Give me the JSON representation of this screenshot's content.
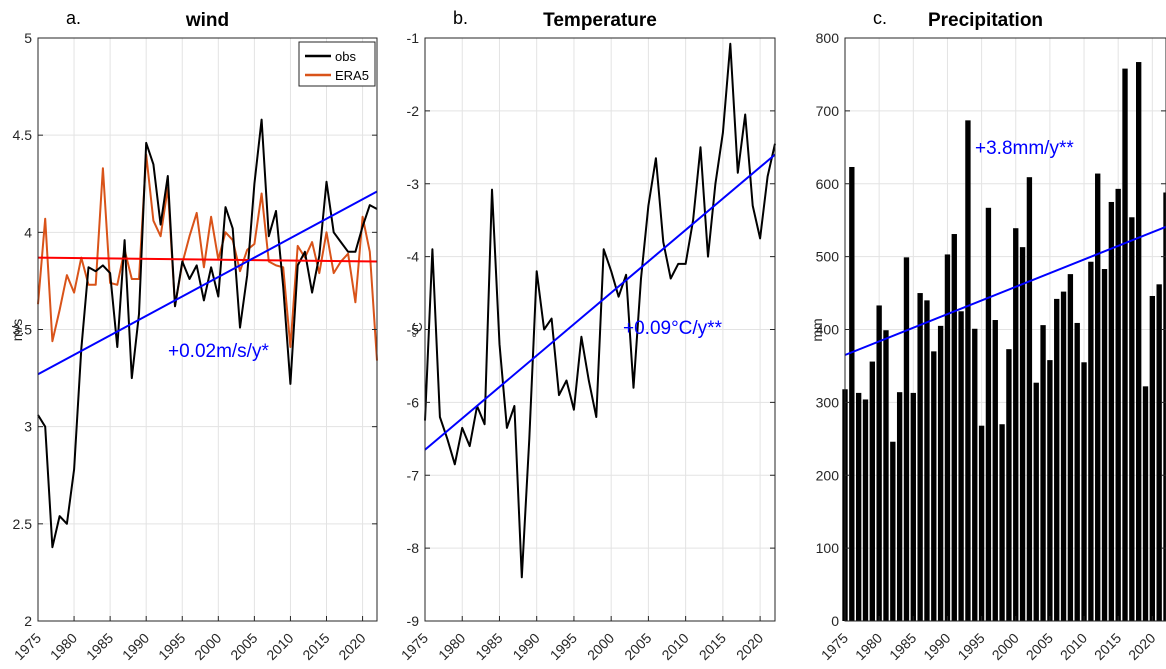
{
  "chart_data": [
    {
      "type": "line",
      "panel_label": "a.",
      "title": "wind",
      "ylabel": "m/s",
      "xlim": [
        1975,
        2022
      ],
      "ylim": [
        2,
        5
      ],
      "yticks": [
        2,
        2.5,
        3,
        3.5,
        4,
        4.5,
        5
      ],
      "xticks": [
        1975,
        1980,
        1985,
        1990,
        1995,
        2000,
        2005,
        2010,
        2015,
        2020
      ],
      "grid": true,
      "legend": {
        "position": "top-right",
        "entries": [
          "obs",
          "ERA5"
        ]
      },
      "x": [
        1975,
        1976,
        1977,
        1978,
        1979,
        1980,
        1981,
        1982,
        1983,
        1984,
        1985,
        1986,
        1987,
        1988,
        1989,
        1990,
        1991,
        1992,
        1993,
        1994,
        1995,
        1996,
        1997,
        1998,
        1999,
        2000,
        2001,
        2002,
        2003,
        2004,
        2005,
        2006,
        2007,
        2008,
        2009,
        2010,
        2011,
        2012,
        2013,
        2014,
        2015,
        2016,
        2017,
        2018,
        2019,
        2020,
        2021,
        2022
      ],
      "series": [
        {
          "name": "obs",
          "color": "#000000",
          "values": [
            3.06,
            3.0,
            2.38,
            2.54,
            2.5,
            2.78,
            3.4,
            3.82,
            3.8,
            3.83,
            3.79,
            3.41,
            3.96,
            3.25,
            3.58,
            4.46,
            4.35,
            4.04,
            4.29,
            3.62,
            3.85,
            3.76,
            3.83,
            3.65,
            3.82,
            3.67,
            4.13,
            4.02,
            3.51,
            3.78,
            4.25,
            4.58,
            3.98,
            4.11,
            3.72,
            3.22,
            3.83,
            3.9,
            3.69,
            3.88,
            4.26,
            4.0,
            3.95,
            3.9,
            3.9,
            4.03,
            4.14,
            4.12
          ]
        },
        {
          "name": "ERA5",
          "color": "#d95319",
          "values": [
            3.63,
            4.07,
            3.44,
            3.6,
            3.78,
            3.69,
            3.87,
            3.73,
            3.73,
            4.33,
            3.74,
            3.73,
            3.91,
            3.76,
            3.76,
            4.4,
            4.06,
            3.98,
            4.23,
            3.62,
            3.84,
            3.98,
            4.1,
            3.82,
            4.08,
            3.86,
            4.0,
            3.96,
            3.8,
            3.91,
            3.94,
            4.2,
            3.85,
            3.83,
            3.82,
            3.41,
            3.93,
            3.87,
            3.95,
            3.79,
            4.0,
            3.79,
            3.85,
            3.89,
            3.64,
            4.08,
            3.9,
            3.34
          ]
        }
      ],
      "trends": [
        {
          "color": "#ff0000",
          "x": [
            1975,
            2022
          ],
          "y": [
            3.87,
            3.85
          ]
        },
        {
          "color": "#0000ff",
          "x": [
            1975,
            2022
          ],
          "y": [
            3.27,
            4.21
          ]
        }
      ],
      "annotation": {
        "text": "+0.02m/s/y*",
        "color": "#0000ff"
      }
    },
    {
      "type": "line",
      "panel_label": "b.",
      "title": "Temperature",
      "ylabel": "°C",
      "xlim": [
        1975,
        2022
      ],
      "ylim": [
        -9,
        -1
      ],
      "yticks": [
        -9,
        -8,
        -7,
        -6,
        -5,
        -4,
        -3,
        -2,
        -1
      ],
      "xticks": [
        1975,
        1980,
        1985,
        1990,
        1995,
        2000,
        2005,
        2010,
        2015,
        2020
      ],
      "grid": true,
      "x": [
        1975,
        1976,
        1977,
        1978,
        1979,
        1980,
        1981,
        1982,
        1983,
        1984,
        1985,
        1986,
        1987,
        1988,
        1989,
        1990,
        1991,
        1992,
        1993,
        1994,
        1995,
        1996,
        1997,
        1998,
        1999,
        2000,
        2001,
        2002,
        2003,
        2004,
        2005,
        2006,
        2007,
        2008,
        2009,
        2010,
        2011,
        2012,
        2013,
        2014,
        2015,
        2016,
        2017,
        2018,
        2019,
        2020,
        2021,
        2022
      ],
      "series": [
        {
          "color": "#000000",
          "values": [
            -6.25,
            -3.9,
            -6.2,
            -6.5,
            -6.85,
            -6.35,
            -6.6,
            -6.05,
            -6.3,
            -3.08,
            -5.2,
            -6.35,
            -6.05,
            -8.4,
            -6.5,
            -4.2,
            -5.0,
            -4.85,
            -5.9,
            -5.7,
            -6.1,
            -5.1,
            -5.7,
            -6.2,
            -3.9,
            -4.2,
            -4.55,
            -4.25,
            -5.8,
            -4.3,
            -3.3,
            -2.65,
            -3.8,
            -4.3,
            -4.1,
            -4.1,
            -3.5,
            -2.5,
            -4.0,
            -3.0,
            -2.3,
            -1.08,
            -2.85,
            -2.05,
            -3.3,
            -3.75,
            -2.9,
            -2.45
          ]
        }
      ],
      "trends": [
        {
          "color": "#0000ff",
          "x": [
            1975,
            2022
          ],
          "y": [
            -6.65,
            -2.6
          ]
        }
      ],
      "annotation": {
        "text": "+0.09°C/y**",
        "color": "#0000ff"
      }
    },
    {
      "type": "bar",
      "panel_label": "c.",
      "title": "Precipitation",
      "ylabel": "mm",
      "xlim": [
        1975,
        2022
      ],
      "ylim": [
        0,
        800
      ],
      "yticks": [
        0,
        100,
        200,
        300,
        400,
        500,
        600,
        700,
        800
      ],
      "xticks": [
        1975,
        1980,
        1985,
        1990,
        1995,
        2000,
        2005,
        2010,
        2015,
        2020
      ],
      "grid": true,
      "bar_color": "#000000",
      "x": [
        1975,
        1976,
        1977,
        1978,
        1979,
        1980,
        1981,
        1982,
        1983,
        1984,
        1985,
        1986,
        1987,
        1988,
        1989,
        1990,
        1991,
        1992,
        1993,
        1994,
        1995,
        1996,
        1997,
        1998,
        1999,
        2000,
        2001,
        2002,
        2003,
        2004,
        2005,
        2006,
        2007,
        2008,
        2009,
        2010,
        2011,
        2012,
        2013,
        2014,
        2015,
        2016,
        2017,
        2018,
        2019,
        2020,
        2021,
        2022
      ],
      "values": [
        318,
        623,
        313,
        304,
        356,
        433,
        399,
        246,
        314,
        499,
        313,
        450,
        440,
        370,
        405,
        503,
        531,
        425,
        687,
        401,
        268,
        567,
        413,
        270,
        373,
        539,
        513,
        609,
        327,
        406,
        358,
        442,
        452,
        476,
        409,
        355,
        493,
        614,
        483,
        575,
        593,
        758,
        554,
        767,
        322,
        446,
        462,
        588
      ],
      "trends": [
        {
          "color": "#0000ff",
          "x": [
            1975,
            2022
          ],
          "y": [
            365,
            541
          ]
        }
      ],
      "annotation": {
        "text": "+3.8mm/y**",
        "color": "#0000ff"
      }
    }
  ]
}
